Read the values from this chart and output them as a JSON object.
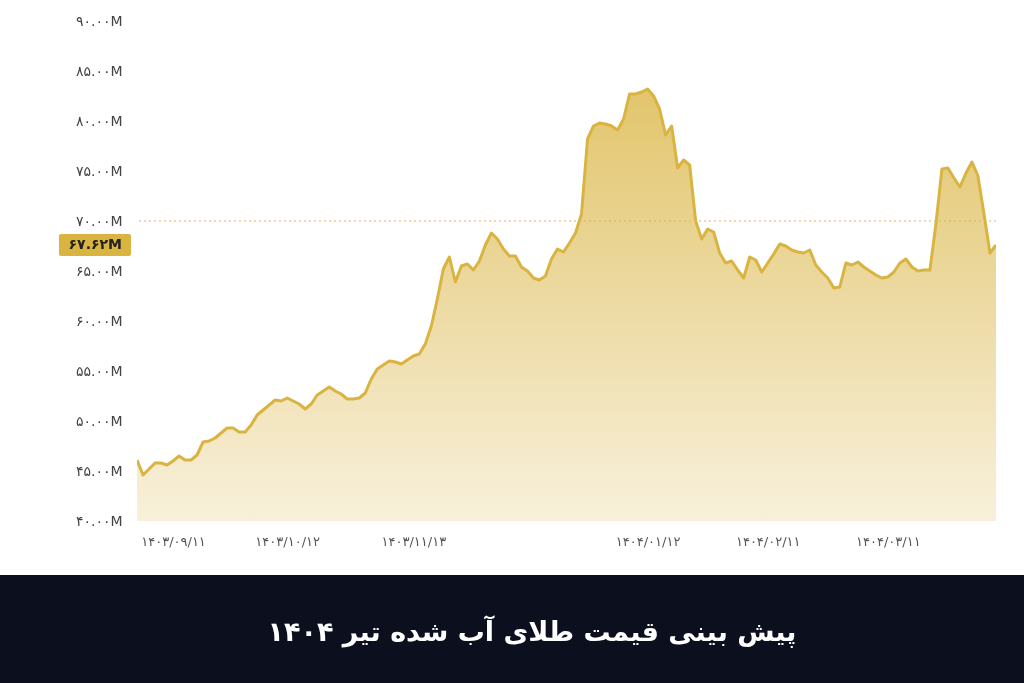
{
  "chart_data": {
    "type": "area",
    "title": "پیش بینی قیمت طلای آب شده تیر ۱۴۰۴",
    "categories": [
      null,
      null,
      null,
      null,
      null,
      null,
      "۱۴۰۳/۰۹/۱۱",
      null,
      null,
      null,
      null,
      null,
      null,
      null,
      null,
      null,
      null,
      null,
      null,
      null,
      null,
      null,
      null,
      null,
      null,
      "۱۴۰۳/۱۰/۱۲",
      null,
      null,
      null,
      null,
      null,
      null,
      null,
      null,
      null,
      null,
      null,
      null,
      null,
      null,
      null,
      null,
      null,
      null,
      null,
      null,
      "۱۴۰۳/۱۱/۱۳",
      null,
      null,
      null,
      null,
      null,
      null,
      null,
      null,
      null,
      null,
      null,
      null,
      null,
      null,
      null,
      null,
      null,
      null,
      null,
      null,
      null,
      null,
      null,
      null,
      null,
      null,
      null,
      null,
      null,
      null,
      null,
      null,
      null,
      null,
      null,
      null,
      null,
      null,
      "۱۴۰۴/۰۱/۱۲",
      null,
      null,
      null,
      null,
      null,
      null,
      null,
      null,
      null,
      null,
      null,
      null,
      null,
      null,
      null,
      null,
      null,
      null,
      null,
      "۱۴۰۴/۰۲/۱۱",
      null,
      null,
      null,
      null,
      null,
      null,
      null,
      null,
      null,
      null,
      null,
      null,
      null,
      null,
      null,
      null,
      null,
      null,
      null,
      "۱۴۰۴/۰۳/۱۱",
      null,
      null,
      null,
      null,
      null,
      null,
      null,
      null,
      null,
      null,
      null,
      null,
      null,
      null,
      null,
      null,
      null,
      null
    ],
    "values": [
      46.1,
      44.6,
      45.2,
      45.8,
      45.8,
      45.6,
      46.0,
      46.5,
      46.1,
      46.1,
      46.6,
      47.9,
      48.0,
      48.3,
      48.8,
      49.3,
      49.3,
      48.9,
      48.9,
      49.6,
      50.6,
      51.1,
      51.6,
      52.1,
      52.0,
      52.3,
      52.0,
      51.7,
      51.2,
      51.7,
      52.6,
      53.0,
      53.4,
      53.0,
      52.7,
      52.2,
      52.2,
      52.3,
      52.8,
      54.2,
      55.2,
      55.6,
      56.0,
      55.9,
      55.7,
      56.1,
      56.5,
      56.7,
      57.7,
      59.5,
      62.2,
      65.2,
      66.4,
      63.9,
      65.5,
      65.7,
      65.1,
      66.0,
      67.6,
      68.8,
      68.2,
      67.2,
      66.5,
      66.5,
      65.4,
      65.0,
      64.3,
      64.1,
      64.5,
      66.2,
      67.2,
      66.9,
      67.8,
      68.8,
      70.7,
      78.2,
      79.5,
      79.8,
      79.7,
      79.5,
      79.1,
      80.2,
      82.7,
      82.7,
      82.9,
      83.2,
      82.5,
      81.2,
      78.6,
      79.5,
      75.3,
      76.1,
      75.6,
      70.0,
      68.2,
      69.2,
      68.9,
      66.8,
      65.8,
      66.0,
      65.1,
      64.3,
      66.4,
      66.1,
      64.9,
      65.8,
      66.7,
      67.7,
      67.5,
      67.1,
      66.9,
      66.8,
      67.1,
      65.6,
      64.9,
      64.3,
      63.3,
      63.4,
      65.8,
      65.6,
      65.9,
      65.4,
      65.0,
      64.6,
      64.3,
      64.4,
      64.9,
      65.8,
      66.2,
      65.4,
      65.0,
      65.1,
      65.1,
      69.7,
      75.2,
      75.3,
      74.3,
      73.4,
      74.8,
      75.9,
      74.5,
      70.7,
      66.8,
      67.6
    ],
    "color": "#d9b441",
    "ylim": [
      40,
      90
    ],
    "yticks": [
      {
        "value": 40,
        "label": "۴۰.۰۰M"
      },
      {
        "value": 45,
        "label": "۴۵.۰۰M"
      },
      {
        "value": 50,
        "label": "۵۰.۰۰M"
      },
      {
        "value": 55,
        "label": "۵۵.۰۰M"
      },
      {
        "value": 60,
        "label": "۶۰.۰۰M"
      },
      {
        "value": 65,
        "label": "۶۵.۰۰M"
      },
      {
        "value": 70,
        "label": "۷۰.۰۰M"
      },
      {
        "value": 75,
        "label": "۷۵.۰۰M"
      },
      {
        "value": 80,
        "label": "۸۰.۰۰M"
      },
      {
        "value": 85,
        "label": "۸۵.۰۰M"
      },
      {
        "value": 90,
        "label": "۹۰.۰۰M"
      }
    ],
    "ref_lines": [
      {
        "axis": "y",
        "value": 70,
        "color": "#e0b454",
        "line_style": "dotted"
      }
    ],
    "annotations": [
      "۶۷.۶۲M"
    ]
  }
}
